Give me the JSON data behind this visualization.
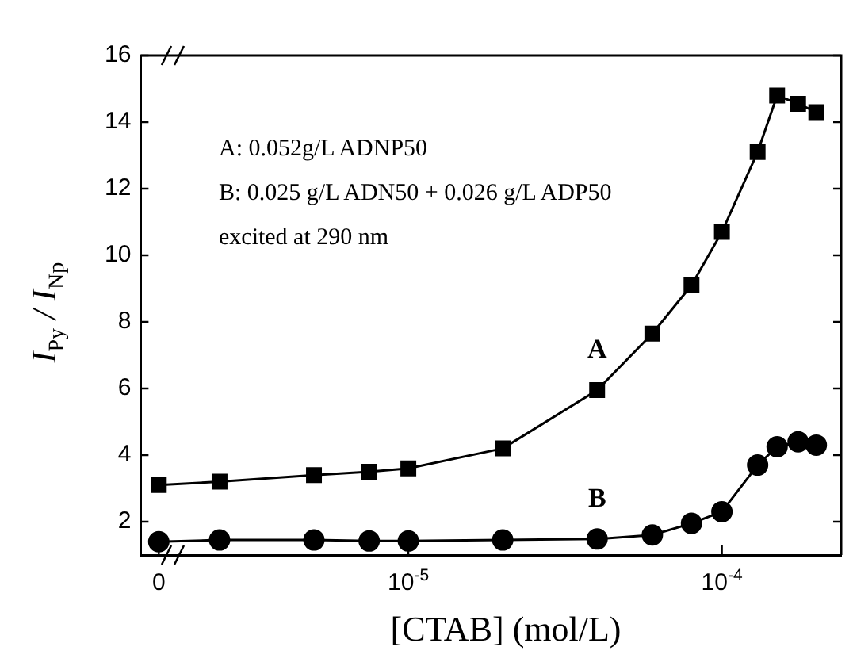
{
  "chart_data": {
    "type": "line",
    "xlabel": "[CTAB] (mol/L)",
    "ylabel": "I$_{Py}$ / I$_{Np}$",
    "x": [
      1.6e-06,
      2.5e-06,
      5e-06,
      7.5e-06,
      1e-05,
      2e-05,
      4e-05,
      6e-05,
      8e-05,
      0.0001,
      0.00013,
      0.00015,
      0.000175,
      0.0002
    ],
    "series": [
      {
        "name": "A",
        "color": "#000000",
        "marker": "square",
        "values": [
          3.1,
          3.2,
          3.4,
          3.5,
          3.6,
          4.2,
          5.95,
          7.65,
          9.1,
          10.7,
          13.1,
          14.8,
          14.55,
          14.3
        ]
      },
      {
        "name": "B",
        "color": "#000000",
        "marker": "circle",
        "values": [
          1.4,
          1.45,
          1.45,
          1.42,
          1.42,
          1.45,
          1.48,
          1.6,
          1.95,
          2.3,
          3.7,
          4.25,
          4.4,
          4.3
        ]
      }
    ],
    "log": "x",
    "xlim": [
      1.4e-06,
      0.00024
    ],
    "xticks": [
      {
        "value": 1.6e-06,
        "label": "0"
      },
      {
        "value": 1e-05,
        "label": "10$^{-5}$"
      },
      {
        "value": 0.0001,
        "label": "10$^{-4}$"
      }
    ],
    "ylim": [
      1,
      16
    ],
    "yticks": [
      2,
      4,
      6,
      8,
      10,
      12,
      14,
      16
    ],
    "grid": false,
    "legend": false,
    "line_style": "solid",
    "annotations": [
      "A: 0.052g/L ADNP50",
      "B: 0.025 g/L ADN50 + 0.026 g/L ADP50",
      "excited at 290 nm"
    ]
  }
}
